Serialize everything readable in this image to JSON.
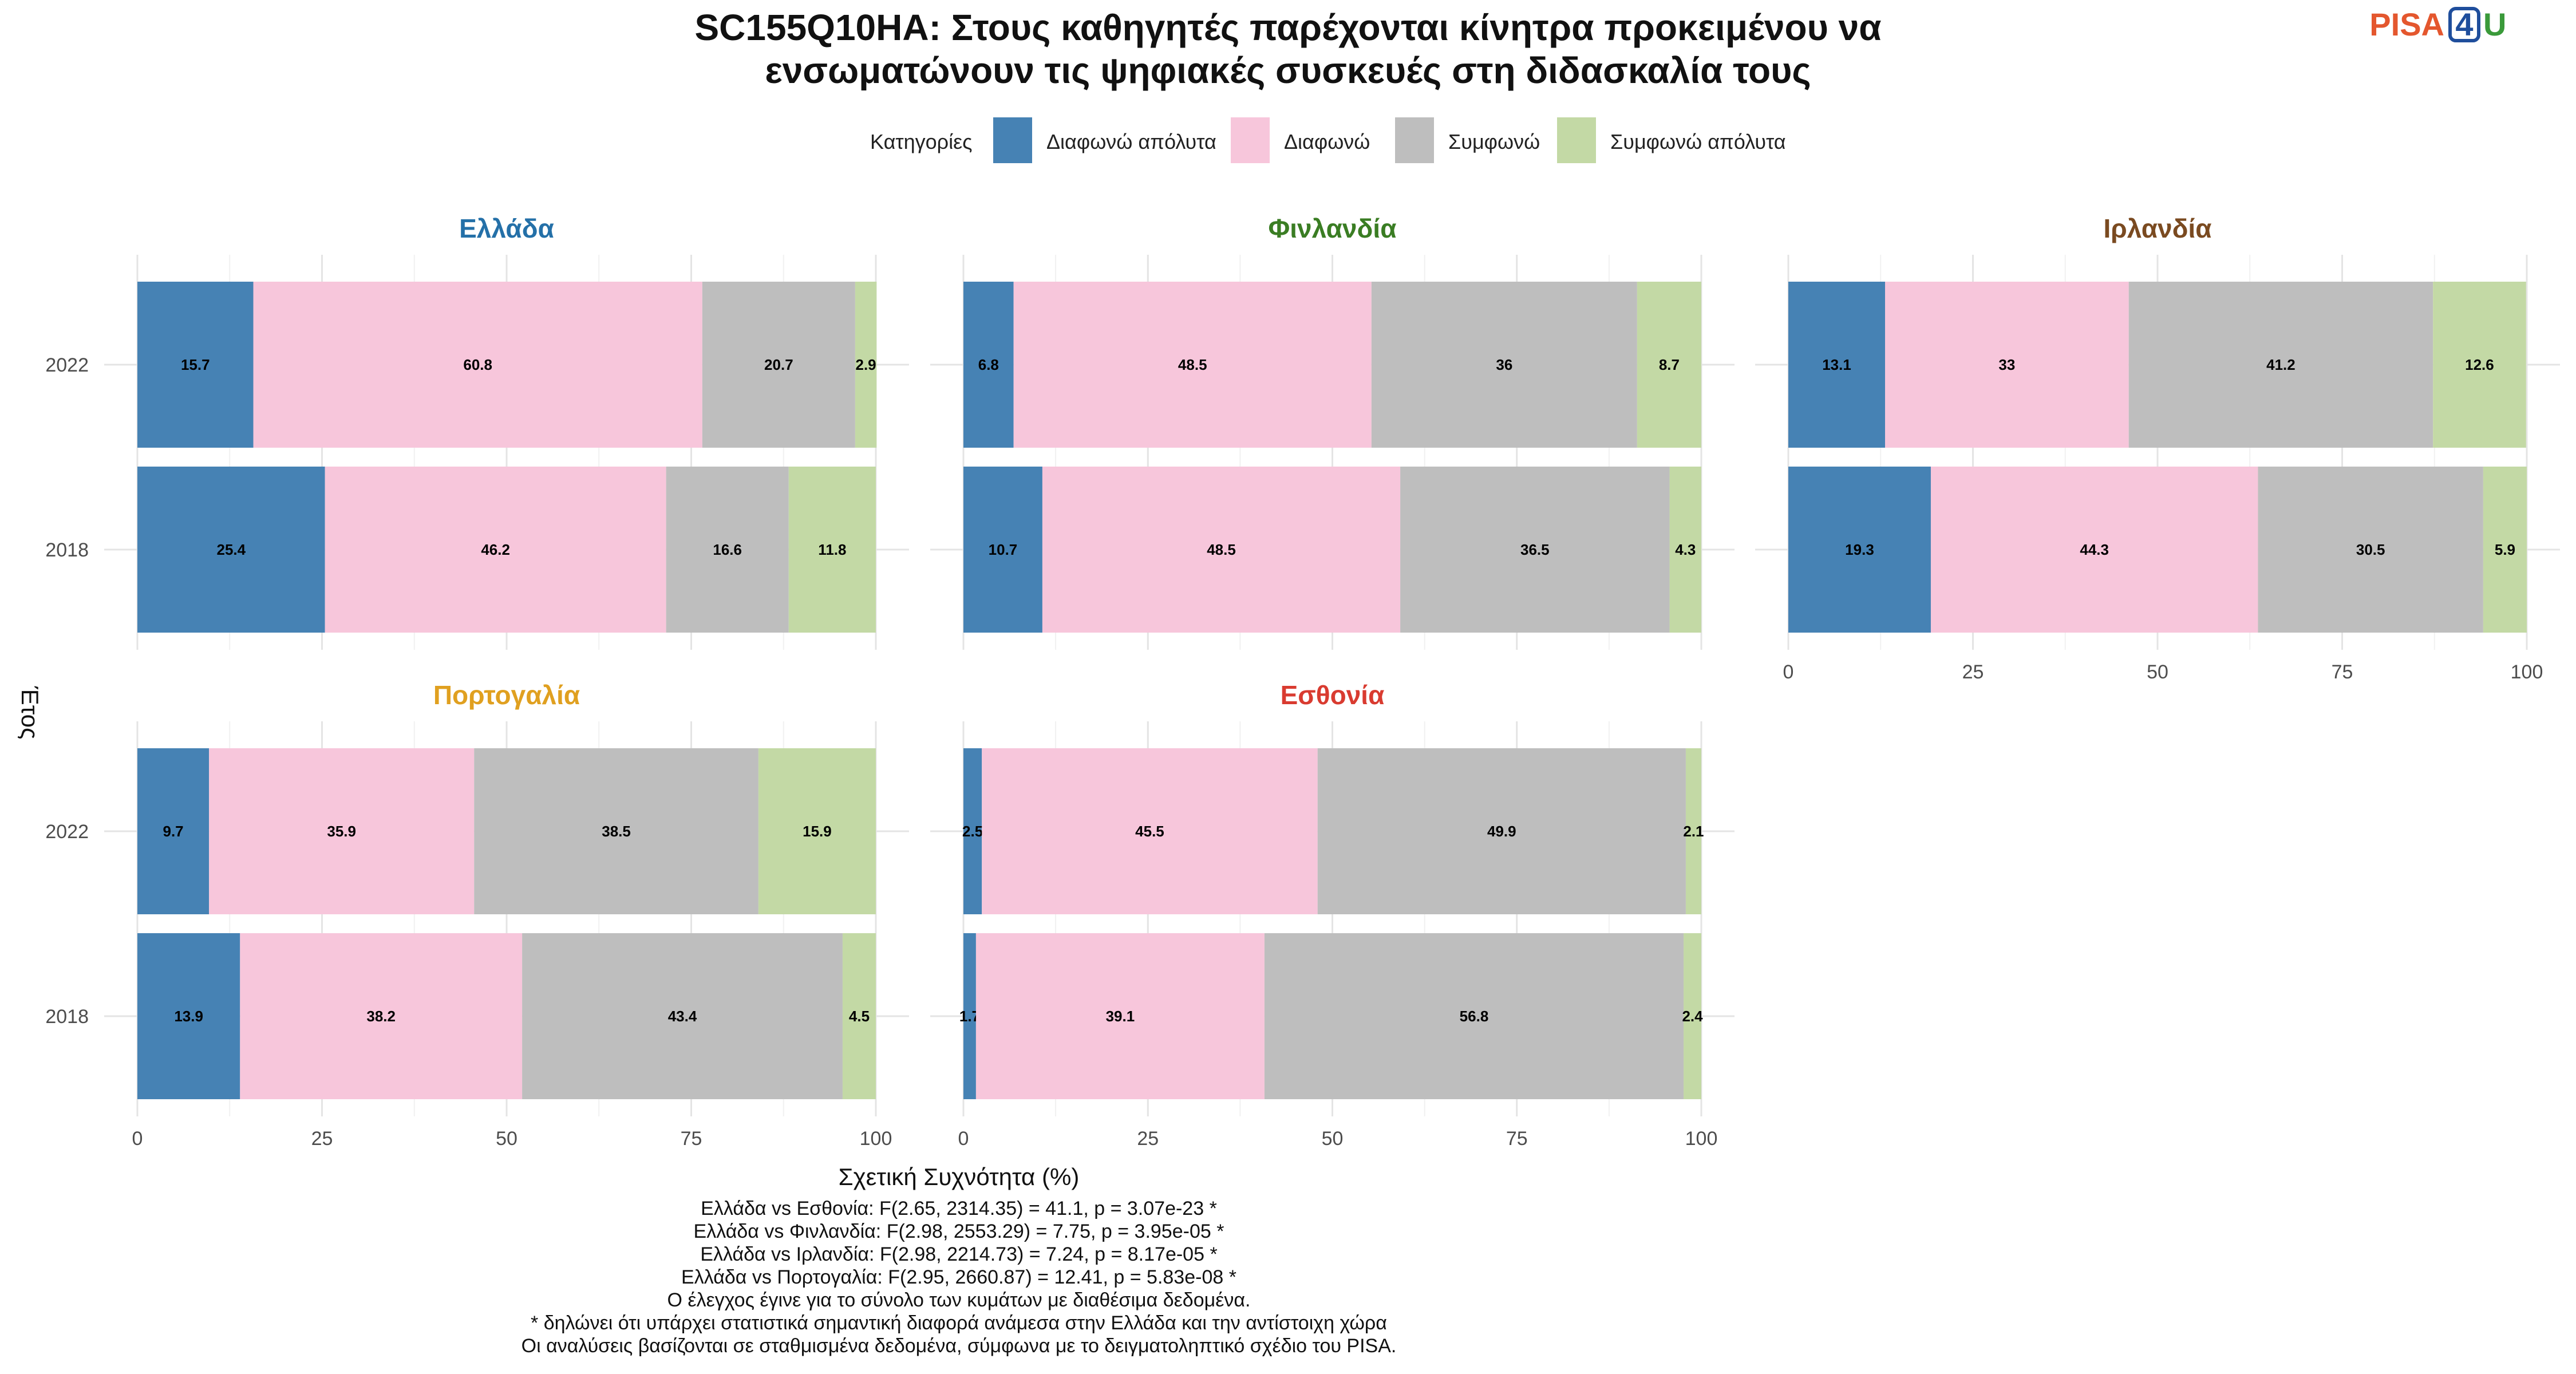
{
  "chart_data": {
    "type": "bar",
    "orientation": "horizontal",
    "stacked": true,
    "title_lines": [
      "SC155Q10HA: Στους καθηγητές παρέχονται κίνητρα προκειμένου να",
      "ενσωματώνουν τις ψηφιακές συσκευές στη διδασκαλία τους"
    ],
    "xlabel": "Σχετική Συχνότητα (%)",
    "ylabel": "Έτος",
    "xlim": [
      0,
      100
    ],
    "x_ticks": [
      "0",
      "25",
      "50",
      "75",
      "100"
    ],
    "years": [
      "2022",
      "2018"
    ],
    "legend": {
      "title": "Κατηγορίες",
      "placement": "top",
      "items": [
        {
          "label": "Διαφωνώ απόλυτα",
          "color": "#4682b4"
        },
        {
          "label": "Διαφωνώ",
          "color": "#f7c6db"
        },
        {
          "label": "Συμφωνώ",
          "color": "#bebebe"
        },
        {
          "label": "Συμφωνώ απόλυτα",
          "color": "#c3d9a5"
        }
      ]
    },
    "facets": [
      {
        "name": "Ελλάδα",
        "color": "#2470a8",
        "rows": [
          {
            "year": "2022",
            "values": [
              15.7,
              60.8,
              20.7,
              2.9
            ]
          },
          {
            "year": "2018",
            "values": [
              25.4,
              46.2,
              16.6,
              11.8
            ]
          }
        ]
      },
      {
        "name": "Φινλανδία",
        "color": "#3a7d23",
        "rows": [
          {
            "year": "2022",
            "values": [
              6.8,
              48.5,
              36,
              8.7
            ]
          },
          {
            "year": "2018",
            "values": [
              10.7,
              48.5,
              36.5,
              4.3
            ]
          }
        ]
      },
      {
        "name": "Ιρλανδία",
        "color": "#7a4a20",
        "rows": [
          {
            "year": "2022",
            "values": [
              13.1,
              33,
              41.2,
              12.6
            ]
          },
          {
            "year": "2018",
            "values": [
              19.3,
              44.3,
              30.5,
              5.9
            ]
          }
        ]
      },
      {
        "name": "Πορτογαλία",
        "color": "#e0a020",
        "rows": [
          {
            "year": "2022",
            "values": [
              9.7,
              35.9,
              38.5,
              15.9
            ]
          },
          {
            "year": "2018",
            "values": [
              13.9,
              38.2,
              43.4,
              4.5
            ]
          }
        ]
      },
      {
        "name": "Εσθονία",
        "color": "#d93b30",
        "rows": [
          {
            "year": "2022",
            "values": [
              2.5,
              45.5,
              49.9,
              2.1
            ]
          },
          {
            "year": "2018",
            "values": [
              1.7,
              39.1,
              56.8,
              2.4
            ]
          }
        ]
      }
    ],
    "grid": true
  },
  "footnotes": [
    "Ελλάδα vs Εσθονία: F(2.65, 2314.35) = 41.1, p = 3.07e-23 *",
    "Ελλάδα vs Φινλανδία: F(2.98, 2553.29) = 7.75, p = 3.95e-05 *",
    "Ελλάδα vs Ιρλανδία: F(2.98, 2214.73) = 7.24, p = 8.17e-05 *",
    "Ελλάδα vs Πορτογαλία: F(2.95, 2660.87) = 12.41, p = 5.83e-08 *",
    "Ο έλεγχος έγινε για το σύνολο των κυμάτων με διαθέσιμα δεδομένα.",
    "* δηλώνει ότι υπάρχει στατιστικά σημαντική διαφορά ανάμεσα στην Ελλάδα και την αντίστοιχη χώρα",
    "Οι αναλύσεις βασίζονται σε σταθμισμένα δεδομένα, σύμφωνα με το δειγματοληπτικό σχέδιο του PISA."
  ],
  "logo": {
    "text_main": "PISA",
    "text_digit": "4",
    "text_end": "U",
    "color_main": "#e4572e",
    "color_digit": "#1f4e9c",
    "color_end": "#3a9a3a"
  }
}
